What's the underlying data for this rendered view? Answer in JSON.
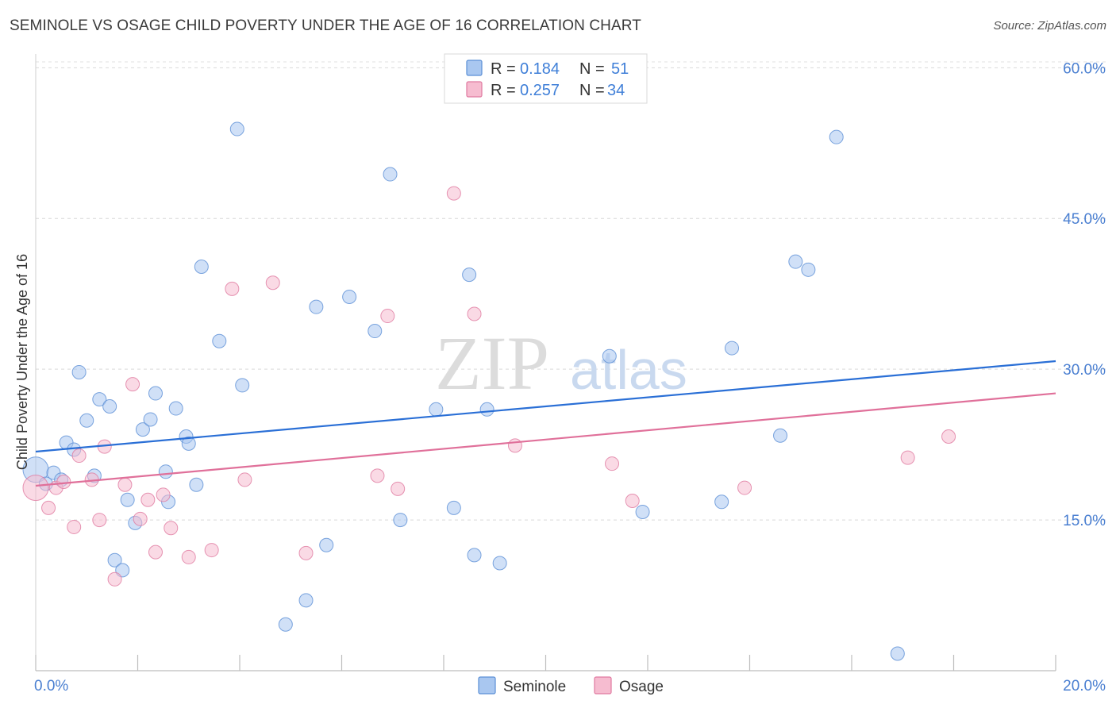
{
  "title": "SEMINOLE VS OSAGE CHILD POVERTY UNDER THE AGE OF 16 CORRELATION CHART",
  "source": "Source: ZipAtlas.com",
  "watermark": {
    "zip": "ZIP",
    "atlas": "atlas"
  },
  "legend": {
    "r_label": "R =",
    "n_label": "N =",
    "rows": [
      {
        "name": "Seminole",
        "r": "0.184",
        "n": "51",
        "color": "#a9c7f0",
        "stroke": "#5b8fd6"
      },
      {
        "name": "Osage",
        "r": "0.257",
        "n": "34",
        "color": "#f6bcd0",
        "stroke": "#e07aa0"
      }
    ]
  },
  "chart_data": {
    "type": "scatter",
    "title": "SEMINOLE VS OSAGE CHILD POVERTY UNDER THE AGE OF 16 CORRELATION CHART",
    "xlabel": "",
    "ylabel": "Child Poverty Under the Age of 16",
    "xlim": [
      0,
      20
    ],
    "ylim": [
      0,
      62
    ],
    "x_tick_labels": [
      "0.0%",
      "20.0%"
    ],
    "y_ticks": [
      15,
      30,
      45,
      60
    ],
    "y_tick_labels": [
      "15.0%",
      "30.0%",
      "45.0%",
      "60.0%"
    ],
    "grid": true,
    "legend_position": "top-center",
    "series": [
      {
        "name": "Seminole",
        "color": "#a9c7f0",
        "stroke": "#5b8fd6",
        "trend_color": "#2a6fd6",
        "trend": [
          [
            0,
            21.8
          ],
          [
            20,
            30.8
          ]
        ],
        "points": [
          [
            0.0,
            20.0
          ],
          [
            0.2,
            18.6
          ],
          [
            0.35,
            19.7
          ],
          [
            0.5,
            19.0
          ],
          [
            0.6,
            22.7
          ],
          [
            0.75,
            22.0
          ],
          [
            0.85,
            29.7
          ],
          [
            1.0,
            24.9
          ],
          [
            1.15,
            19.4
          ],
          [
            1.25,
            27.0
          ],
          [
            1.45,
            26.3
          ],
          [
            1.55,
            11.0
          ],
          [
            1.7,
            10.0
          ],
          [
            1.8,
            17.0
          ],
          [
            1.95,
            14.7
          ],
          [
            2.1,
            24.0
          ],
          [
            2.25,
            25.0
          ],
          [
            2.35,
            27.6
          ],
          [
            2.55,
            19.8
          ],
          [
            2.6,
            16.8
          ],
          [
            2.75,
            26.1
          ],
          [
            2.95,
            23.3
          ],
          [
            3.0,
            22.6
          ],
          [
            3.15,
            18.5
          ],
          [
            3.25,
            40.2
          ],
          [
            3.6,
            32.8
          ],
          [
            3.95,
            53.9
          ],
          [
            4.05,
            28.4
          ],
          [
            4.9,
            4.6
          ],
          [
            5.3,
            7.0
          ],
          [
            5.5,
            36.2
          ],
          [
            5.7,
            12.5
          ],
          [
            6.15,
            37.2
          ],
          [
            6.65,
            33.8
          ],
          [
            6.95,
            49.4
          ],
          [
            7.15,
            15.0
          ],
          [
            7.85,
            26.0
          ],
          [
            8.2,
            16.2
          ],
          [
            8.5,
            39.4
          ],
          [
            8.6,
            11.5
          ],
          [
            8.85,
            26.0
          ],
          [
            9.1,
            10.7
          ],
          [
            11.25,
            31.3
          ],
          [
            11.9,
            15.8
          ],
          [
            13.45,
            16.8
          ],
          [
            13.65,
            32.1
          ],
          [
            14.6,
            23.4
          ],
          [
            14.9,
            40.7
          ],
          [
            15.15,
            39.9
          ],
          [
            15.7,
            53.1
          ],
          [
            16.9,
            1.7
          ]
        ]
      },
      {
        "name": "Osage",
        "color": "#f6bcd0",
        "stroke": "#e07aa0",
        "trend_color": "#e0709a",
        "trend": [
          [
            0,
            18.4
          ],
          [
            20,
            27.6
          ]
        ],
        "points": [
          [
            0.0,
            18.2
          ],
          [
            0.25,
            16.2
          ],
          [
            0.4,
            18.2
          ],
          [
            0.55,
            18.8
          ],
          [
            0.75,
            14.3
          ],
          [
            0.85,
            21.4
          ],
          [
            1.1,
            19.0
          ],
          [
            1.25,
            15.0
          ],
          [
            1.35,
            22.3
          ],
          [
            1.55,
            9.1
          ],
          [
            1.75,
            18.5
          ],
          [
            1.9,
            28.5
          ],
          [
            2.05,
            15.1
          ],
          [
            2.2,
            17.0
          ],
          [
            2.35,
            11.8
          ],
          [
            2.5,
            17.5
          ],
          [
            2.65,
            14.2
          ],
          [
            3.0,
            11.3
          ],
          [
            3.45,
            12.0
          ],
          [
            3.85,
            38.0
          ],
          [
            4.1,
            19.0
          ],
          [
            4.65,
            38.6
          ],
          [
            5.3,
            11.7
          ],
          [
            6.7,
            19.4
          ],
          [
            6.9,
            35.3
          ],
          [
            7.1,
            18.1
          ],
          [
            8.2,
            47.5
          ],
          [
            8.6,
            35.5
          ],
          [
            9.4,
            22.4
          ],
          [
            11.3,
            20.6
          ],
          [
            11.7,
            16.9
          ],
          [
            13.9,
            18.2
          ],
          [
            17.1,
            21.2
          ],
          [
            17.9,
            23.3
          ]
        ]
      }
    ]
  }
}
